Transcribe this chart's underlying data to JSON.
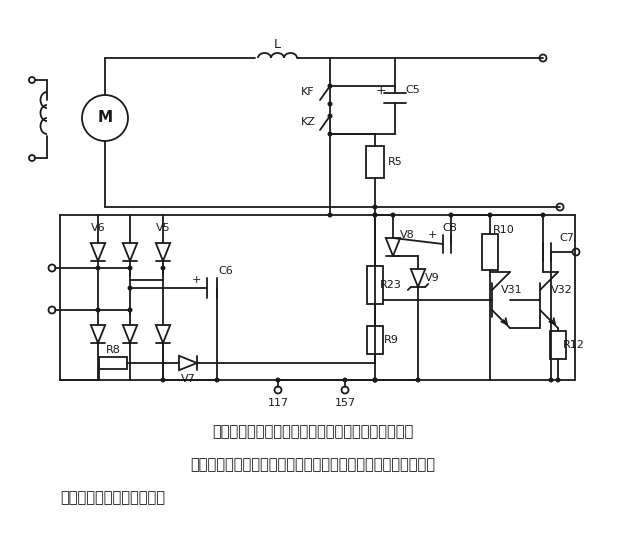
{
  "bg_color": "#ffffff",
  "line_color": "#1a1a1a",
  "text_color": "#1a1a1a",
  "caption_line1": "所示为放大和电压微分负反馈电路。运行时，特别是",
  "caption_line2": "在低速运行时，容易产生振荡，为了避免系统发生振荡，采用放",
  "caption_line3": "大和电压微分负反馈电路。",
  "label_L": "L",
  "label_KF": "KF",
  "label_KZ": "KZ",
  "label_C5": "C5",
  "label_R5": "R5",
  "label_V6": "V6",
  "label_V5": "V5",
  "label_C6": "C6",
  "label_R8": "R8",
  "label_V7": "V7",
  "label_V8": "V8",
  "label_V9": "V9",
  "label_C8": "C8",
  "label_R10": "R10",
  "label_C7": "C7",
  "label_R23": "R23",
  "label_R9": "R9",
  "label_V31": "V31",
  "label_V32": "V32",
  "label_R12": "R12",
  "label_117": "117",
  "label_157": "157",
  "label_M": "M"
}
